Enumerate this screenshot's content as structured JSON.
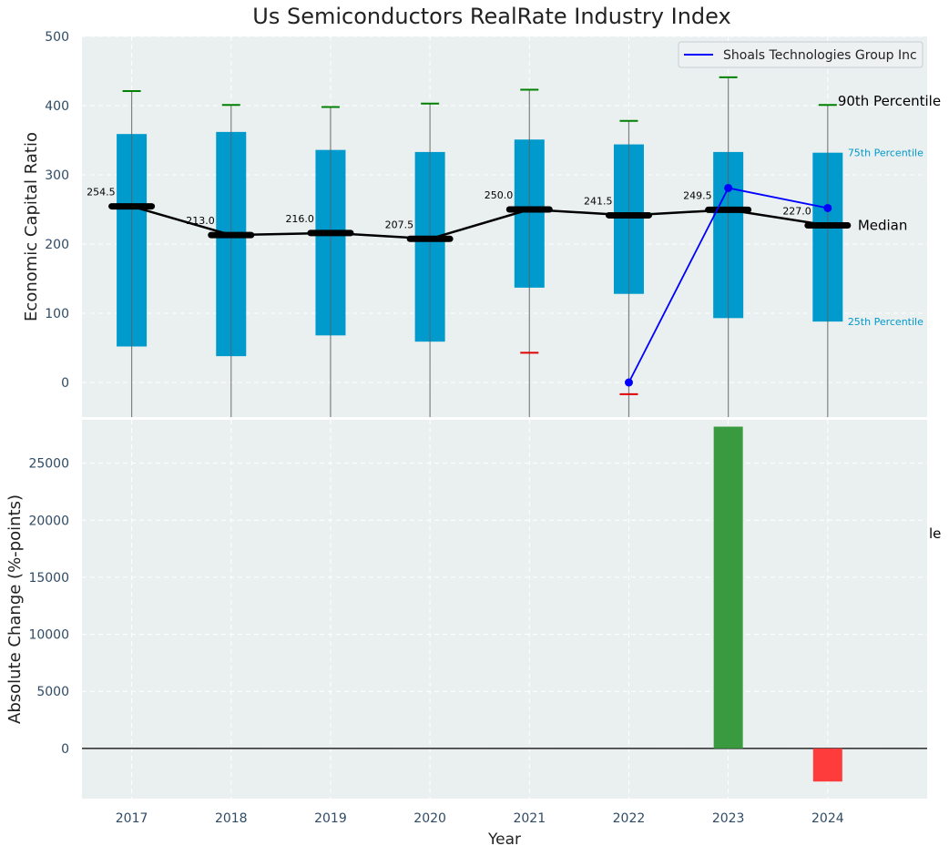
{
  "chart_data": {
    "title": "Us Semiconductors RealRate Industry Index",
    "type": "box-range",
    "colors": {
      "background": "#eaeff0",
      "box": "#009acd",
      "median_line": "#000000",
      "company": "#0000ff",
      "whisker_top": "#008000",
      "whisker_low": "#e00000",
      "bar_positive": "#3a9a3f",
      "bar_negative": "#ff3c3c",
      "label_accent": "#0099cc"
    },
    "categories": [
      "2017",
      "2018",
      "2019",
      "2020",
      "2021",
      "2022",
      "2023",
      "2024"
    ],
    "top_panel": {
      "ylabel": "Economic Capital Ratio",
      "ylim": [
        -50,
        500
      ],
      "yticks": [
        0,
        100,
        200,
        300,
        400,
        500
      ],
      "p90": [
        421,
        401,
        398,
        403,
        423,
        378,
        441,
        401
      ],
      "p75": [
        359,
        362,
        336,
        333,
        351,
        344,
        333,
        332
      ],
      "p25": [
        52,
        38,
        68,
        59,
        137,
        128,
        93,
        88
      ],
      "p10": [
        -50,
        -50,
        -50,
        -50,
        43,
        -17,
        -50,
        -50
      ],
      "p10_marker_visible": [
        false,
        false,
        false,
        false,
        true,
        true,
        false,
        false
      ],
      "median": [
        254.5,
        213.0,
        216.0,
        207.5,
        250.0,
        241.5,
        249.5,
        227.0
      ],
      "median_labels": [
        "254.5",
        "213.0",
        "216.0",
        "207.5",
        "250.0",
        "241.5",
        "249.5",
        "227.0"
      ],
      "company": {
        "name": "Shoals Technologies Group Inc",
        "x": [
          "2022",
          "2023",
          "2024"
        ],
        "values": [
          0,
          281,
          252
        ]
      },
      "annotations": {
        "p90": "90th Percentile",
        "p75": "75th Percentile",
        "median": "Median",
        "p25": "25th Percentile"
      },
      "legend_position": "top-right",
      "grid": true
    },
    "bottom_panel": {
      "ylabel": "Absolute Change (%-points)",
      "xlabel": "Year",
      "ylim": [
        -4400,
        28800
      ],
      "yticks": [
        0,
        5000,
        10000,
        15000,
        20000,
        25000
      ],
      "values": [
        0,
        0,
        0,
        0,
        0,
        0,
        28200,
        -2900
      ],
      "clipped_text": "le",
      "grid": true
    }
  }
}
